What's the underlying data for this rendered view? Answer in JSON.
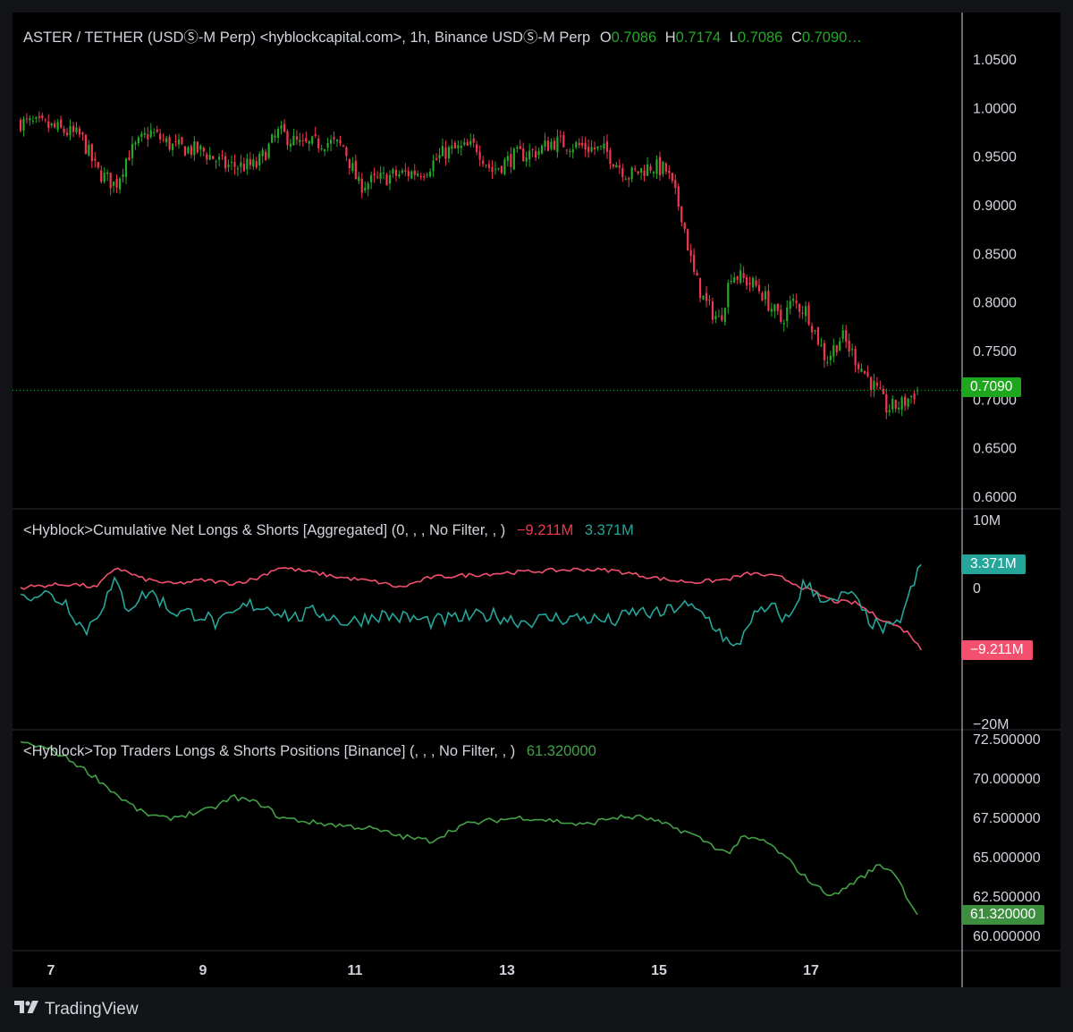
{
  "header": {
    "symbol_text": "ASTER / TETHER (USDⓈ-M Perp) <hyblockcapital.com>, 1h, Binance USDⓈ-M Perp",
    "o_label": "O",
    "o_value": "0.7086",
    "h_label": "H",
    "h_value": "0.7174",
    "l_label": "L",
    "l_value": "0.7086",
    "c_label": "C",
    "c_value": "0.7090…"
  },
  "panel2": {
    "title": "<Hyblock>Cumulative Net Longs & Shorts [Aggregated] (0, , , No Filter, , )",
    "value_red": "−9.211M",
    "value_teal": "3.371M"
  },
  "panel3": {
    "title": "<Hyblock>Top Traders Longs & Shorts Positions [Binance] (, , , No Filter, , )",
    "value": "61.320000"
  },
  "badges": {
    "price": "0.7090",
    "net_teal": "3.371M",
    "net_red": "−9.211M",
    "top": "61.320000"
  },
  "colors": {
    "up": "#26a828",
    "down": "#f23650",
    "net_long": "#26a69a",
    "net_short": "#f2506e",
    "top_traders": "#43a047",
    "background": "#000000"
  },
  "footer": {
    "brand": "TradingView",
    "logo_icon": "tradingview-logo-icon"
  },
  "chart_data": [
    {
      "type": "candlestick",
      "title": "ASTER / TETHER (USDⓈ-M Perp), 1h",
      "x_ticks": [
        "7",
        "9",
        "11",
        "13",
        "15",
        "17"
      ],
      "y_ticks": [
        "1.0500",
        "1.0000",
        "0.9500",
        "0.9000",
        "0.8500",
        "0.8000",
        "0.7500",
        "0.7000",
        "0.6500",
        "0.6000"
      ],
      "ylim": [
        0.6,
        1.05
      ],
      "last_price": 0.709,
      "ohlc_last": {
        "open": 0.7086,
        "high": 0.7174,
        "low": 0.7086,
        "close": 0.709
      },
      "close_path": [
        [
          6.6,
          0.985
        ],
        [
          7.0,
          0.98
        ],
        [
          7.4,
          0.97
        ],
        [
          7.6,
          0.935
        ],
        [
          7.85,
          0.92
        ],
        [
          8.0,
          0.95
        ],
        [
          8.3,
          0.975
        ],
        [
          8.6,
          0.96
        ],
        [
          9.0,
          0.955
        ],
        [
          9.3,
          0.94
        ],
        [
          9.7,
          0.94
        ],
        [
          10.0,
          0.975
        ],
        [
          10.3,
          0.96
        ],
        [
          10.6,
          0.965
        ],
        [
          10.85,
          0.96
        ],
        [
          11.05,
          0.92
        ],
        [
          11.5,
          0.93
        ],
        [
          11.9,
          0.935
        ],
        [
          12.2,
          0.955
        ],
        [
          12.6,
          0.96
        ],
        [
          12.8,
          0.935
        ],
        [
          13.1,
          0.95
        ],
        [
          13.4,
          0.955
        ],
        [
          13.6,
          0.965
        ],
        [
          14.0,
          0.96
        ],
        [
          14.3,
          0.955
        ],
        [
          14.6,
          0.93
        ],
        [
          14.9,
          0.94
        ],
        [
          15.1,
          0.935
        ],
        [
          15.3,
          0.89
        ],
        [
          15.45,
          0.83
        ],
        [
          15.6,
          0.8
        ],
        [
          15.8,
          0.78
        ],
        [
          15.95,
          0.83
        ],
        [
          16.3,
          0.815
        ],
        [
          16.6,
          0.78
        ],
        [
          16.75,
          0.8
        ],
        [
          16.95,
          0.79
        ],
        [
          17.2,
          0.74
        ],
        [
          17.4,
          0.765
        ],
        [
          17.6,
          0.74
        ],
        [
          17.85,
          0.71
        ],
        [
          18.0,
          0.69
        ],
        [
          18.2,
          0.695
        ],
        [
          18.4,
          0.709
        ]
      ]
    },
    {
      "type": "line",
      "title": "<Hyblock>Cumulative Net Longs & Shorts [Aggregated]",
      "y_ticks": [
        "10M",
        "0",
        "−20M"
      ],
      "ylim": [
        -20,
        10
      ],
      "units": "M",
      "series": [
        {
          "name": "net_shorts",
          "last": -9.211,
          "points": [
            [
              6.6,
              0
            ],
            [
              6.9,
              0.3
            ],
            [
              7.3,
              0.5
            ],
            [
              7.6,
              0
            ],
            [
              7.85,
              3.0
            ],
            [
              8.2,
              1.3
            ],
            [
              8.6,
              0.5
            ],
            [
              9.0,
              1.1
            ],
            [
              9.4,
              0.6
            ],
            [
              9.7,
              1.3
            ],
            [
              10.0,
              3.0
            ],
            [
              10.4,
              2.3
            ],
            [
              10.8,
              1.5
            ],
            [
              11.3,
              0.8
            ],
            [
              11.6,
              0.0
            ],
            [
              12.0,
              1.5
            ],
            [
              12.6,
              1.9
            ],
            [
              13.0,
              2.2
            ],
            [
              13.6,
              2.5
            ],
            [
              14.0,
              2.7
            ],
            [
              14.4,
              2.5
            ],
            [
              14.8,
              1.7
            ],
            [
              15.2,
              1.0
            ],
            [
              15.5,
              0.8
            ],
            [
              15.9,
              1.2
            ],
            [
              16.2,
              2.1
            ],
            [
              16.6,
              1.5
            ],
            [
              16.9,
              0.0
            ],
            [
              17.3,
              -2.0
            ],
            [
              17.6,
              -2.3
            ],
            [
              17.85,
              -4.2
            ],
            [
              18.1,
              -5.5
            ],
            [
              18.3,
              -6.8
            ],
            [
              18.45,
              -9.211
            ]
          ]
        },
        {
          "name": "net_longs",
          "last": 3.371,
          "points": [
            [
              6.6,
              -1.0
            ],
            [
              6.9,
              -0.8
            ],
            [
              7.2,
              -2.2
            ],
            [
              7.45,
              -6.5
            ],
            [
              7.6,
              -4.0
            ],
            [
              7.85,
              0.8
            ],
            [
              8.0,
              -3.0
            ],
            [
              8.3,
              -0.5
            ],
            [
              8.6,
              -3.5
            ],
            [
              9.0,
              -4.0
            ],
            [
              9.2,
              -5.5
            ],
            [
              9.6,
              -2.5
            ],
            [
              9.9,
              -3.0
            ],
            [
              10.2,
              -4.5
            ],
            [
              10.5,
              -3.5
            ],
            [
              10.9,
              -5.2
            ],
            [
              11.3,
              -4.0
            ],
            [
              11.7,
              -4.5
            ],
            [
              12.0,
              -5.0
            ],
            [
              12.4,
              -4.5
            ],
            [
              12.8,
              -4.0
            ],
            [
              13.2,
              -5.0
            ],
            [
              13.6,
              -4.5
            ],
            [
              14.0,
              -4.5
            ],
            [
              14.4,
              -5.0
            ],
            [
              14.7,
              -3.5
            ],
            [
              15.0,
              -4.0
            ],
            [
              15.3,
              -2.5
            ],
            [
              15.6,
              -4.0
            ],
            [
              15.8,
              -6.5
            ],
            [
              16.0,
              -9.5
            ],
            [
              16.2,
              -4.5
            ],
            [
              16.5,
              -3.0
            ],
            [
              16.7,
              -5.0
            ],
            [
              16.9,
              0.5
            ],
            [
              17.1,
              -1.0
            ],
            [
              17.3,
              -2.5
            ],
            [
              17.5,
              -0.5
            ],
            [
              17.7,
              -4.0
            ],
            [
              17.9,
              -6.0
            ],
            [
              18.1,
              -6.2
            ],
            [
              18.25,
              -2.5
            ],
            [
              18.45,
              3.371
            ]
          ]
        }
      ]
    },
    {
      "type": "line",
      "title": "<Hyblock>Top Traders Longs & Shorts Positions [Binance]",
      "y_ticks": [
        "72.500000",
        "70.000000",
        "67.500000",
        "65.000000",
        "62.500000",
        "60.000000"
      ],
      "ylim": [
        60,
        72.5
      ],
      "series": [
        {
          "name": "top_traders",
          "last": 61.32,
          "points": [
            [
              6.6,
              72.3
            ],
            [
              7.0,
              71.8
            ],
            [
              7.3,
              71.0
            ],
            [
              7.6,
              70.0
            ],
            [
              7.9,
              68.8
            ],
            [
              8.2,
              67.8
            ],
            [
              8.5,
              67.4
            ],
            [
              8.9,
              67.8
            ],
            [
              9.1,
              68.0
            ],
            [
              9.4,
              68.8
            ],
            [
              9.8,
              68.3
            ],
            [
              10.0,
              67.5
            ],
            [
              10.4,
              67.2
            ],
            [
              10.8,
              67.0
            ],
            [
              11.2,
              66.8
            ],
            [
              11.6,
              66.3
            ],
            [
              12.0,
              66.0
            ],
            [
              12.4,
              67.0
            ],
            [
              12.8,
              67.3
            ],
            [
              13.2,
              67.5
            ],
            [
              13.6,
              67.3
            ],
            [
              14.0,
              67.0
            ],
            [
              14.4,
              67.5
            ],
            [
              14.8,
              67.5
            ],
            [
              15.1,
              67.0
            ],
            [
              15.4,
              66.5
            ],
            [
              15.6,
              66.0
            ],
            [
              15.9,
              65.2
            ],
            [
              16.1,
              66.2
            ],
            [
              16.4,
              66.0
            ],
            [
              16.7,
              64.8
            ],
            [
              16.9,
              63.8
            ],
            [
              17.1,
              63.0
            ],
            [
              17.3,
              62.5
            ],
            [
              17.5,
              63.2
            ],
            [
              17.7,
              63.8
            ],
            [
              17.9,
              64.5
            ],
            [
              18.1,
              64.0
            ],
            [
              18.25,
              62.6
            ],
            [
              18.4,
              61.32
            ]
          ]
        }
      ]
    }
  ]
}
